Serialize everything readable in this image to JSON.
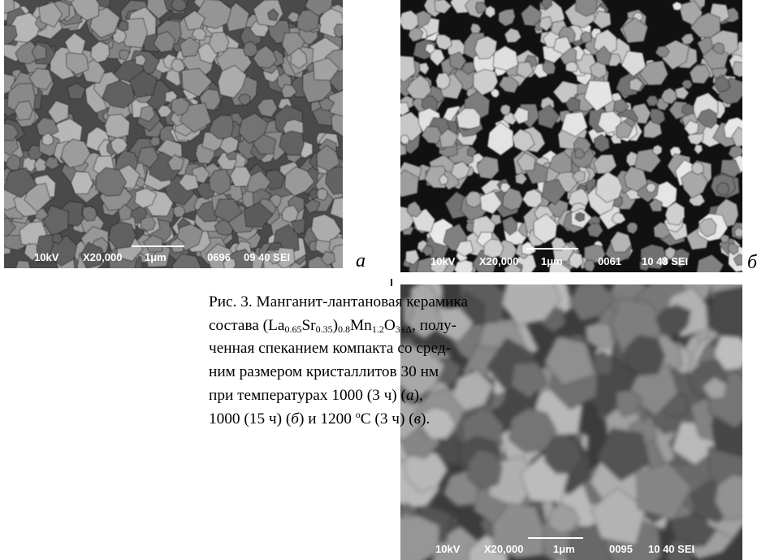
{
  "images": [
    {
      "info": [
        "10kV",
        "X20,000",
        "1μm",
        "0696",
        "09 40 SEI"
      ],
      "label": "а"
    },
    {
      "info": [
        "10kV",
        "X20,000",
        "1μm",
        "0061",
        "10 43 SEI"
      ],
      "label": "б"
    },
    {
      "info": [
        "10kV",
        "X20,000",
        "1μm",
        "0095",
        "10 40 SEI"
      ]
    }
  ],
  "caption": {
    "lines": [
      [
        "Рис. 3. Манганит-лантановая керамика"
      ],
      [
        "состава (La",
        "0.65",
        "Sr",
        "0.35",
        ")",
        "0.8",
        "Mn",
        "1.2",
        "O",
        "3±Δ",
        ", полу-"
      ],
      [
        "ченная спеканием компакта со сред-"
      ],
      [
        "ним размером кристаллитов 30 нм"
      ],
      [
        "при температурах 1000 (3 ч) (",
        "а",
        "),"
      ],
      [
        "1000 (15 ч) (",
        "б",
        ") и 1200 ",
        "o",
        "С (3 ч) (",
        "в",
        ")."
      ]
    ]
  }
}
